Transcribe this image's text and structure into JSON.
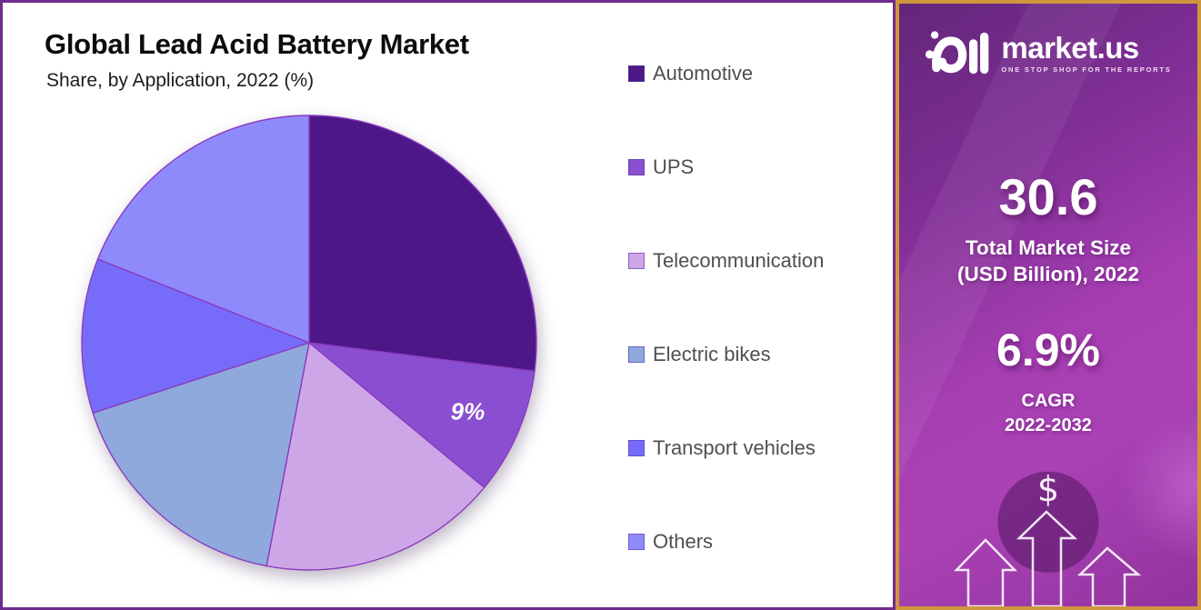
{
  "chart_panel": {
    "border_color": "#6f2b8e"
  },
  "chart_data": {
    "type": "pie",
    "title": "Global Lead Acid Battery Market",
    "subtitle": "Share, by Application, 2022 (%)",
    "unit": "%",
    "start_angle_deg": 0,
    "direction": "clockwise",
    "legend_position": "right",
    "series": [
      {
        "label": "Automotive",
        "value": 27,
        "color": "#4e1787",
        "label_visible": false
      },
      {
        "label": "UPS",
        "value": 9,
        "color": "#8a4fd0",
        "label_visible": true,
        "data_label": "9%"
      },
      {
        "label": "Telecommunication",
        "value": 17,
        "color": "#cda6e8",
        "label_visible": false
      },
      {
        "label": "Electric bikes",
        "value": 17,
        "color": "#8fa9dd",
        "label_visible": false
      },
      {
        "label": "Transport vehicles",
        "value": 11,
        "color": "#776cfa",
        "label_visible": false
      },
      {
        "label": "Others",
        "value": 19,
        "color": "#8f8afc",
        "label_visible": false
      }
    ]
  },
  "sidebar": {
    "border_color": "#d0963e",
    "background_accent": "#a63eb2",
    "logo": {
      "brand": "market.us",
      "tagline": "ONE STOP SHOP FOR THE REPORTS"
    },
    "stats": [
      {
        "value": "30.6",
        "caption_line1": "Total Market Size",
        "caption_line2": "(USD Billion), 2022"
      },
      {
        "value": "6.9%",
        "caption_line1": "CAGR",
        "caption_line2": "2022-2032"
      }
    ],
    "dollar_symbol": "$",
    "icons": [
      "dollar-icon",
      "growth-arrows-icon"
    ]
  }
}
